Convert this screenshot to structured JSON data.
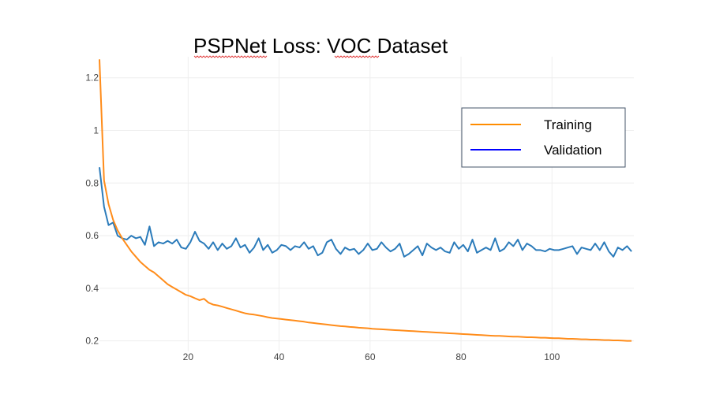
{
  "chart_data": {
    "type": "line",
    "title": "PSPNet Loss: VOC Dataset",
    "xlabel": "",
    "ylabel": "",
    "xlim": [
      0.5,
      118
    ],
    "ylim": [
      0.16,
      1.28
    ],
    "x_ticks": [
      20,
      40,
      60,
      80,
      100
    ],
    "x_tick_labels": [
      "20",
      "40",
      "60",
      "80",
      "100"
    ],
    "y_ticks": [
      0.2,
      0.4,
      0.6,
      0.8,
      1.0,
      1.2
    ],
    "y_tick_labels": [
      "0.2",
      "0.4",
      "0.6",
      "0.8",
      "1",
      "1.2"
    ],
    "grid": true,
    "legend_position": "top-right",
    "legend": [
      {
        "label": "Training",
        "color": "#ff8c00"
      },
      {
        "label": "Validation",
        "color": "#0000ff"
      }
    ],
    "series": [
      {
        "name": "Training",
        "color": "#ff8c1a",
        "x_start": 0.5,
        "x_step": 1,
        "values": [
          1.27,
          0.81,
          0.72,
          0.66,
          0.62,
          0.59,
          0.565,
          0.54,
          0.52,
          0.5,
          0.485,
          0.47,
          0.46,
          0.445,
          0.43,
          0.415,
          0.405,
          0.395,
          0.385,
          0.375,
          0.37,
          0.362,
          0.355,
          0.36,
          0.345,
          0.338,
          0.335,
          0.33,
          0.325,
          0.32,
          0.315,
          0.31,
          0.305,
          0.302,
          0.3,
          0.297,
          0.294,
          0.29,
          0.287,
          0.285,
          0.283,
          0.281,
          0.279,
          0.277,
          0.275,
          0.273,
          0.27,
          0.268,
          0.266,
          0.264,
          0.262,
          0.26,
          0.258,
          0.256,
          0.255,
          0.253,
          0.252,
          0.25,
          0.249,
          0.248,
          0.246,
          0.245,
          0.244,
          0.243,
          0.242,
          0.241,
          0.24,
          0.239,
          0.238,
          0.237,
          0.236,
          0.235,
          0.234,
          0.233,
          0.232,
          0.231,
          0.23,
          0.229,
          0.228,
          0.227,
          0.226,
          0.225,
          0.224,
          0.223,
          0.222,
          0.221,
          0.22,
          0.219,
          0.219,
          0.218,
          0.217,
          0.216,
          0.216,
          0.215,
          0.214,
          0.214,
          0.213,
          0.212,
          0.212,
          0.211,
          0.21,
          0.21,
          0.209,
          0.208,
          0.208,
          0.207,
          0.206,
          0.206,
          0.205,
          0.205,
          0.204,
          0.203,
          0.203,
          0.202,
          0.202,
          0.201,
          0.2,
          0.2
        ]
      },
      {
        "name": "Validation",
        "color": "#2b7bba",
        "x_start": 0.5,
        "x_step": 1,
        "values": [
          0.86,
          0.71,
          0.64,
          0.65,
          0.6,
          0.59,
          0.585,
          0.6,
          0.59,
          0.595,
          0.565,
          0.635,
          0.56,
          0.575,
          0.57,
          0.58,
          0.57,
          0.585,
          0.555,
          0.55,
          0.575,
          0.615,
          0.58,
          0.57,
          0.55,
          0.575,
          0.545,
          0.57,
          0.55,
          0.56,
          0.59,
          0.555,
          0.565,
          0.535,
          0.555,
          0.59,
          0.545,
          0.565,
          0.535,
          0.545,
          0.565,
          0.56,
          0.545,
          0.56,
          0.555,
          0.575,
          0.55,
          0.56,
          0.525,
          0.535,
          0.575,
          0.585,
          0.55,
          0.53,
          0.555,
          0.545,
          0.55,
          0.53,
          0.545,
          0.57,
          0.545,
          0.55,
          0.575,
          0.555,
          0.54,
          0.55,
          0.57,
          0.52,
          0.53,
          0.545,
          0.56,
          0.525,
          0.57,
          0.555,
          0.545,
          0.555,
          0.54,
          0.535,
          0.575,
          0.55,
          0.565,
          0.54,
          0.585,
          0.535,
          0.545,
          0.555,
          0.545,
          0.59,
          0.54,
          0.55,
          0.575,
          0.56,
          0.585,
          0.545,
          0.57,
          0.56,
          0.545,
          0.545,
          0.54,
          0.55,
          0.545,
          0.545,
          0.55,
          0.555,
          0.56,
          0.53,
          0.555,
          0.55,
          0.545,
          0.57,
          0.545,
          0.575,
          0.54,
          0.52,
          0.555,
          0.545,
          0.56,
          0.54
        ]
      }
    ]
  }
}
